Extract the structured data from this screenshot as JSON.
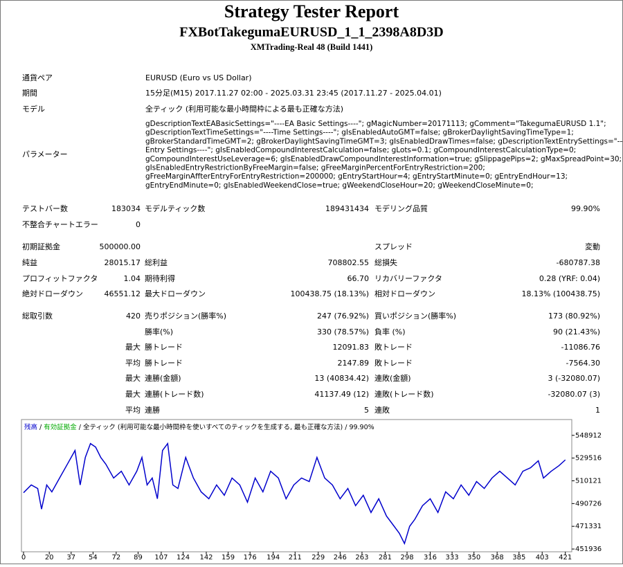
{
  "header": {
    "title": "Strategy Tester Report",
    "subtitle": "FXBotTakegumaEURUSD_1_1_2398A8D3D",
    "build": "XMTrading-Real 48 (Build 1441)"
  },
  "info": [
    {
      "label": "通貨ペア",
      "value": [
        "EURUSD (Euro vs US Dollar)"
      ]
    },
    {
      "label": "期間",
      "value": [
        "15分足(M15) 2017.11.27 02:00 - 2025.03.31 23:45 (2017.11.27 - 2025.04.01)"
      ]
    },
    {
      "label": "モデル",
      "value": [
        "全ティック (利用可能な最小時間枠による最も正確な方法)"
      ]
    },
    {
      "label": "パラメーター",
      "value": [
        "gDescriptionTextEABasicSettings=\"----EA Basic Settings----\"; gMagicNumber=20171113; gComment=\"TakegumaEURUSD 1.1\";",
        "gDescriptionTextTimeSettings=\"----Time Settings----\"; gIsEnabledAutoGMT=false; gBrokerDaylightSavingTimeType=1;",
        "gBrokerStandardTimeGMT=2; gBrokerDaylightSavingTimeGMT=3; gIsEnabledDrawTimes=false; gDescriptionTextEntrySettings=\"----",
        "Entry Settings----\"; gIsEnabledCompoundInterestCalculation=false; gLots=0.1; gCompoundInterestCalculationType=0;",
        "gCompoundInterestUseLeverage=6; gIsEnabledDrawCompoundInterestInformation=true; gSlippagePips=2; gMaxSpreadPoint=30;",
        "gIsEnabledEntryRestrictionByFreeMargin=false; gFreeMarginPercentForEntryRestriction=200;",
        "gFreeMarginAffterEntryForEntryRestriction=200000; gEntryStartHour=4; gEntryStartMinute=0; gEntryEndHour=13;",
        "gEntryEndMinute=0; gIsEnabledWeekendClose=true; gWeekendCloseHour=20; gWeekendCloseMinute=0;"
      ]
    }
  ],
  "summary": [
    [
      "テストバー数",
      "183034",
      "モデルティック数",
      "189431434",
      "モデリング品質",
      "99.90%"
    ],
    [
      "不整合チャートエラー",
      "0",
      null,
      null,
      null,
      null
    ],
    [
      "初期証拠金",
      "500000.00",
      null,
      null,
      "スプレッド",
      "変動"
    ],
    [
      "純益",
      "28015.17",
      "総利益",
      "708802.55",
      "総損失",
      "-680787.38"
    ],
    [
      "プロフィットファクタ",
      "1.04",
      "期待利得",
      "66.70",
      "リカバリーファクタ",
      "0.28 (YRF: 0.04)"
    ],
    [
      "絶対ドローダウン",
      "46551.12",
      "最大ドローダウン",
      "100438.75 (18.13%)",
      "相対ドローダウン",
      "18.13% (100438.75)"
    ],
    [
      "総取引数",
      "420",
      "売りポジション(勝率%)",
      "247 (76.92%)",
      "買いポジション(勝率%)",
      "173 (80.92%)"
    ],
    [
      null,
      null,
      "勝率(%)",
      "330 (78.57%)",
      "負率 (%)",
      "90 (21.43%)"
    ],
    [
      null,
      "最大",
      "勝トレード",
      "12091.83",
      "敗トレード",
      "-11086.76"
    ],
    [
      null,
      "平均",
      "勝トレード",
      "2147.89",
      "敗トレード",
      "-7564.30"
    ],
    [
      null,
      "最大",
      "連勝(金額)",
      "13 (40834.42)",
      "連敗(金額)",
      "3 (-32080.07)"
    ],
    [
      null,
      "最大",
      "連勝(トレード数)",
      "41137.49 (12)",
      "連敗(トレード数)",
      "-32080.07 (3)"
    ],
    [
      null,
      "平均",
      "連勝",
      "5",
      "連敗",
      "1"
    ]
  ],
  "chart_data": {
    "type": "line",
    "legend": [
      {
        "text": "残高",
        "color": "#0000cc"
      },
      {
        "text": "有効証拠金",
        "color": "#00aa00"
      }
    ],
    "separator": "/",
    "model": "全ティック (利用可能な最小時間枠を使いすべてのティックを生成する, 最も正確な方法)",
    "quality": "99.90%",
    "series": [
      {
        "name": "残高",
        "color": "#0000cc",
        "x": [
          0,
          6,
          11,
          14,
          18,
          22,
          28,
          34,
          40,
          44,
          48,
          52,
          56,
          60,
          64,
          70,
          76,
          82,
          88,
          92,
          96,
          100,
          104,
          108,
          112,
          116,
          120,
          126,
          132,
          138,
          144,
          150,
          156,
          162,
          168,
          174,
          180,
          186,
          192,
          198,
          204,
          210,
          216,
          222,
          228,
          234,
          240,
          246,
          252,
          258,
          264,
          270,
          276,
          282,
          288,
          292,
          296,
          300,
          304,
          310,
          316,
          322,
          328,
          334,
          340,
          346,
          352,
          358,
          364,
          370,
          376,
          382,
          388,
          394,
          400,
          404,
          410,
          416,
          421
        ],
        "values": [
          500000,
          506600,
          503600,
          486000,
          506600,
          500700,
          512500,
          524200,
          536000,
          506600,
          530100,
          541900,
          538900,
          530100,
          524200,
          512500,
          518300,
          506600,
          518300,
          530100,
          506600,
          512500,
          494800,
          536000,
          541900,
          506600,
          503600,
          530100,
          512500,
          500700,
          494800,
          506600,
          497800,
          512500,
          506600,
          491900,
          512500,
          500700,
          518300,
          512500,
          494800,
          506600,
          512500,
          509500,
          530100,
          512500,
          506600,
          494800,
          503600,
          488900,
          497800,
          483100,
          494800,
          480100,
          471300,
          465400,
          456600,
          471300,
          477200,
          488900,
          494800,
          483100,
          500700,
          494800,
          506600,
          497800,
          509500,
          503600,
          512500,
          518300,
          512500,
          506600,
          518300,
          521300,
          527200,
          512500,
          518300,
          523000,
          528000
        ]
      }
    ],
    "xlim": [
      0,
      426
    ],
    "ylim": [
      449600,
      562400
    ],
    "xticks": [
      0,
      20,
      37,
      54,
      72,
      89,
      107,
      124,
      142,
      159,
      176,
      194,
      211,
      229,
      246,
      263,
      281,
      298,
      316,
      333,
      350,
      368,
      385,
      403,
      421
    ],
    "yticks": [
      451936,
      471331,
      490726,
      510121,
      529516,
      548912
    ]
  }
}
